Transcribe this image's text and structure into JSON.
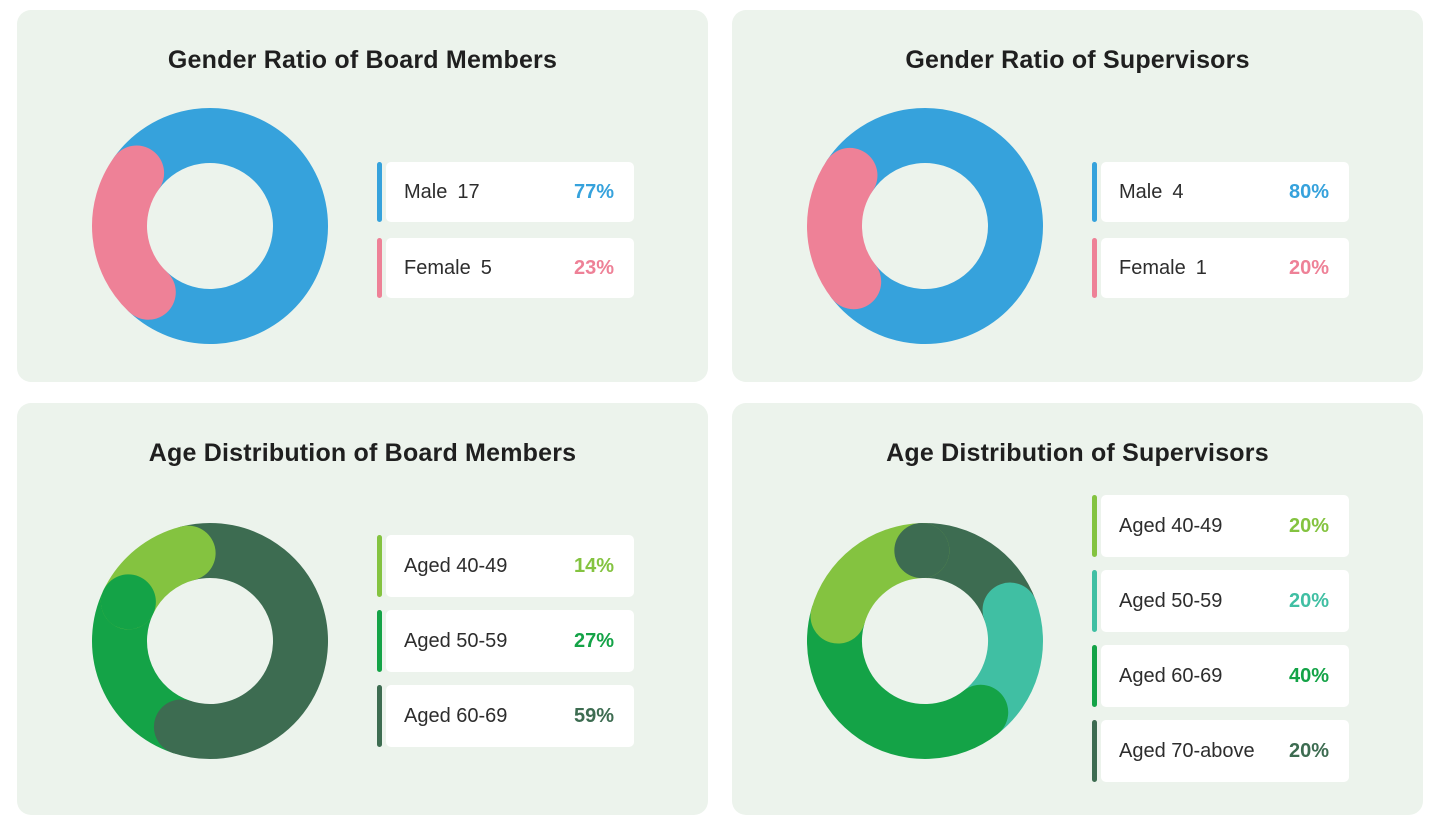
{
  "theme": {
    "page_bg": "#ffffff",
    "card_bg": "#ecf3ec",
    "row_bg": "#ffffff",
    "title_color": "#1f1f1f",
    "label_color": "#2d2d2d"
  },
  "chart_data": [
    {
      "type": "pie",
      "subtype": "donut",
      "title": "Gender Ratio of Board Members",
      "legend_position": "right",
      "categories": [
        "Male",
        "Female"
      ],
      "counts": [
        17,
        5
      ],
      "percents": [
        77,
        23
      ],
      "percent_labels": [
        "77%",
        "23%"
      ],
      "colors": [
        "#36a2dc",
        "#ee8197"
      ],
      "donut_layout": {
        "start_angle": 227,
        "arc_order": [
          0,
          1
        ],
        "paint_order": [
          0,
          1
        ],
        "extra_caps": []
      }
    },
    {
      "type": "pie",
      "subtype": "donut",
      "title": "Gender Ratio of Supervisors",
      "legend_position": "right",
      "categories": [
        "Male",
        "Female"
      ],
      "counts": [
        4,
        1
      ],
      "percents": [
        80,
        20
      ],
      "percent_labels": [
        "80%",
        "20%"
      ],
      "colors": [
        "#36a2dc",
        "#ee8197"
      ],
      "donut_layout": {
        "start_angle": 218,
        "arc_order": [
          0,
          1
        ],
        "paint_order": [
          0,
          1
        ],
        "extra_caps": []
      }
    },
    {
      "type": "pie",
      "subtype": "donut",
      "title": "Age Distribution of Board Members",
      "legend_position": "right",
      "categories": [
        "Aged 40-49",
        "Aged 50-59",
        "Aged 60-69"
      ],
      "percents": [
        14,
        27,
        59
      ],
      "percent_labels": [
        "14%",
        "27%",
        "59%"
      ],
      "colors": [
        "#84c340",
        "#14a347",
        "#3d6c51"
      ],
      "donut_layout": {
        "start_angle": 104,
        "arc_order": [
          0,
          1,
          2
        ],
        "paint_order": [
          1,
          2,
          0
        ],
        "extra_caps": [
          {
            "frac": 0.14,
            "color_index": 1
          }
        ]
      }
    },
    {
      "type": "pie",
      "subtype": "donut",
      "title": "Age Distribution of Supervisors",
      "legend_position": "right",
      "categories": [
        "Aged 40-49",
        "Aged 50-59",
        "Aged 60-69",
        "Aged 70-above"
      ],
      "percents": [
        20,
        20,
        40,
        20
      ],
      "percent_labels": [
        "20%",
        "20%",
        "40%",
        "20%"
      ],
      "colors": [
        "#84c340",
        "#40bfa3",
        "#14a347",
        "#3d6c51"
      ],
      "donut_layout": {
        "start_angle": 92,
        "arc_order": [
          0,
          2,
          1,
          3
        ],
        "paint_order": [
          3,
          1,
          2,
          0
        ],
        "extra_caps": [
          {
            "frac": 1.0,
            "color_index": 3
          }
        ]
      }
    }
  ]
}
